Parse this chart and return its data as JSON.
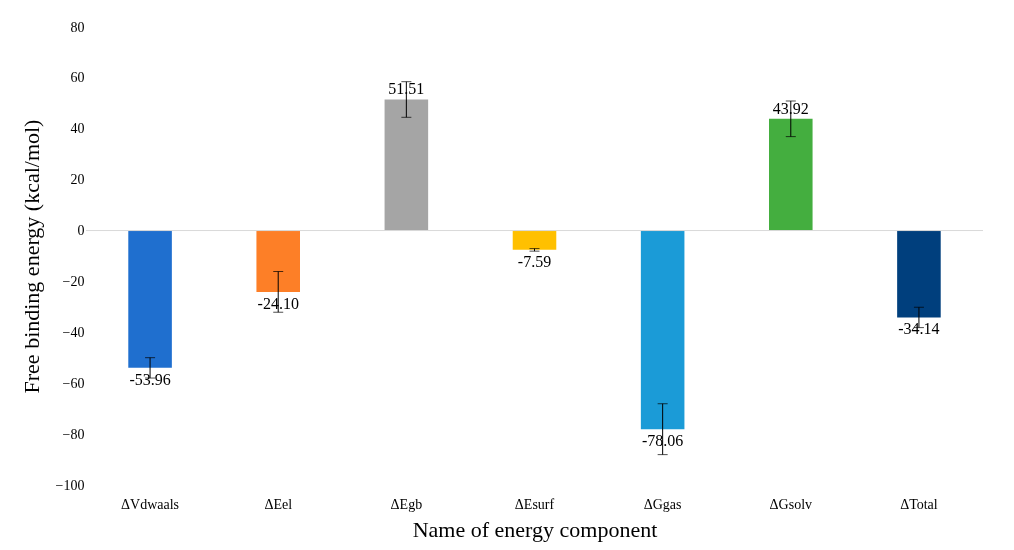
{
  "chart_data": {
    "type": "bar",
    "xlabel": "Name of energy component",
    "ylabel": "Free binding energy (kcal/mol)",
    "categories": [
      "ΔVdwaals",
      "ΔEel",
      "ΔEgb",
      "ΔEsurf",
      "ΔGgas",
      "ΔGsolv",
      "ΔTotal"
    ],
    "values": [
      -53.96,
      -24.1,
      51.51,
      -7.59,
      -78.06,
      43.92,
      -34.14
    ],
    "colors": [
      "#1f6fcf",
      "#fd7f27",
      "#a5a5a5",
      "#ffc000",
      "#1b9bd7",
      "#44ae3f",
      "#003f7d"
    ],
    "errors": [
      4,
      8,
      7,
      0.5,
      10,
      7,
      4
    ],
    "value_labels": [
      "-53.96",
      "-24.10",
      "51.51",
      "-7.59",
      "-78.06",
      "43.92",
      "-34.14"
    ],
    "ylim": [
      -100,
      80
    ],
    "yticks": [
      -100,
      -80,
      -60,
      -40,
      -20,
      0,
      20,
      40,
      60,
      80
    ]
  }
}
